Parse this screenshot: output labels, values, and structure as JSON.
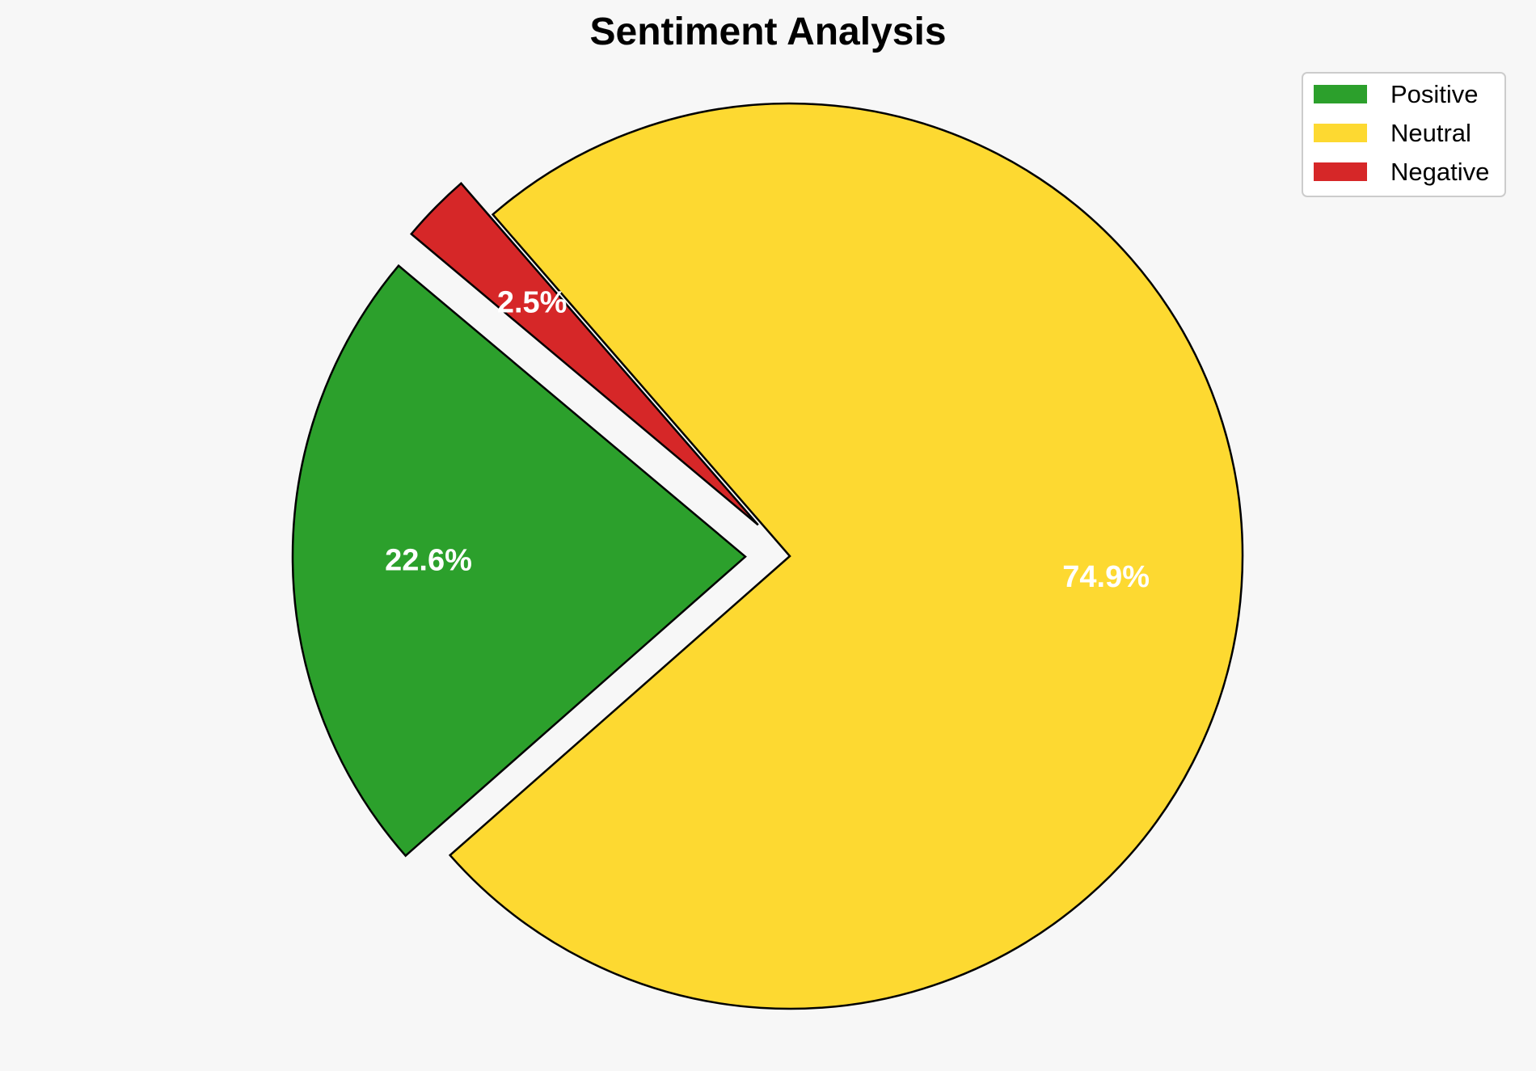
{
  "chart_data": {
    "type": "pie",
    "title": "Sentiment Analysis",
    "start_angle_deg": 140,
    "direction": "counterclockwise",
    "explode_visible": true,
    "slices": [
      {
        "label": "Positive",
        "value": 22.6,
        "display": "22.6%",
        "color": "#2ca02c"
      },
      {
        "label": "Neutral",
        "value": 74.9,
        "display": "74.9%",
        "color": "#fdd931"
      },
      {
        "label": "Negative",
        "value": 2.5,
        "display": "2.5%",
        "color": "#d62728"
      }
    ],
    "legend": {
      "placement": "top-right",
      "entries": [
        "Positive",
        "Neutral",
        "Negative"
      ]
    }
  }
}
